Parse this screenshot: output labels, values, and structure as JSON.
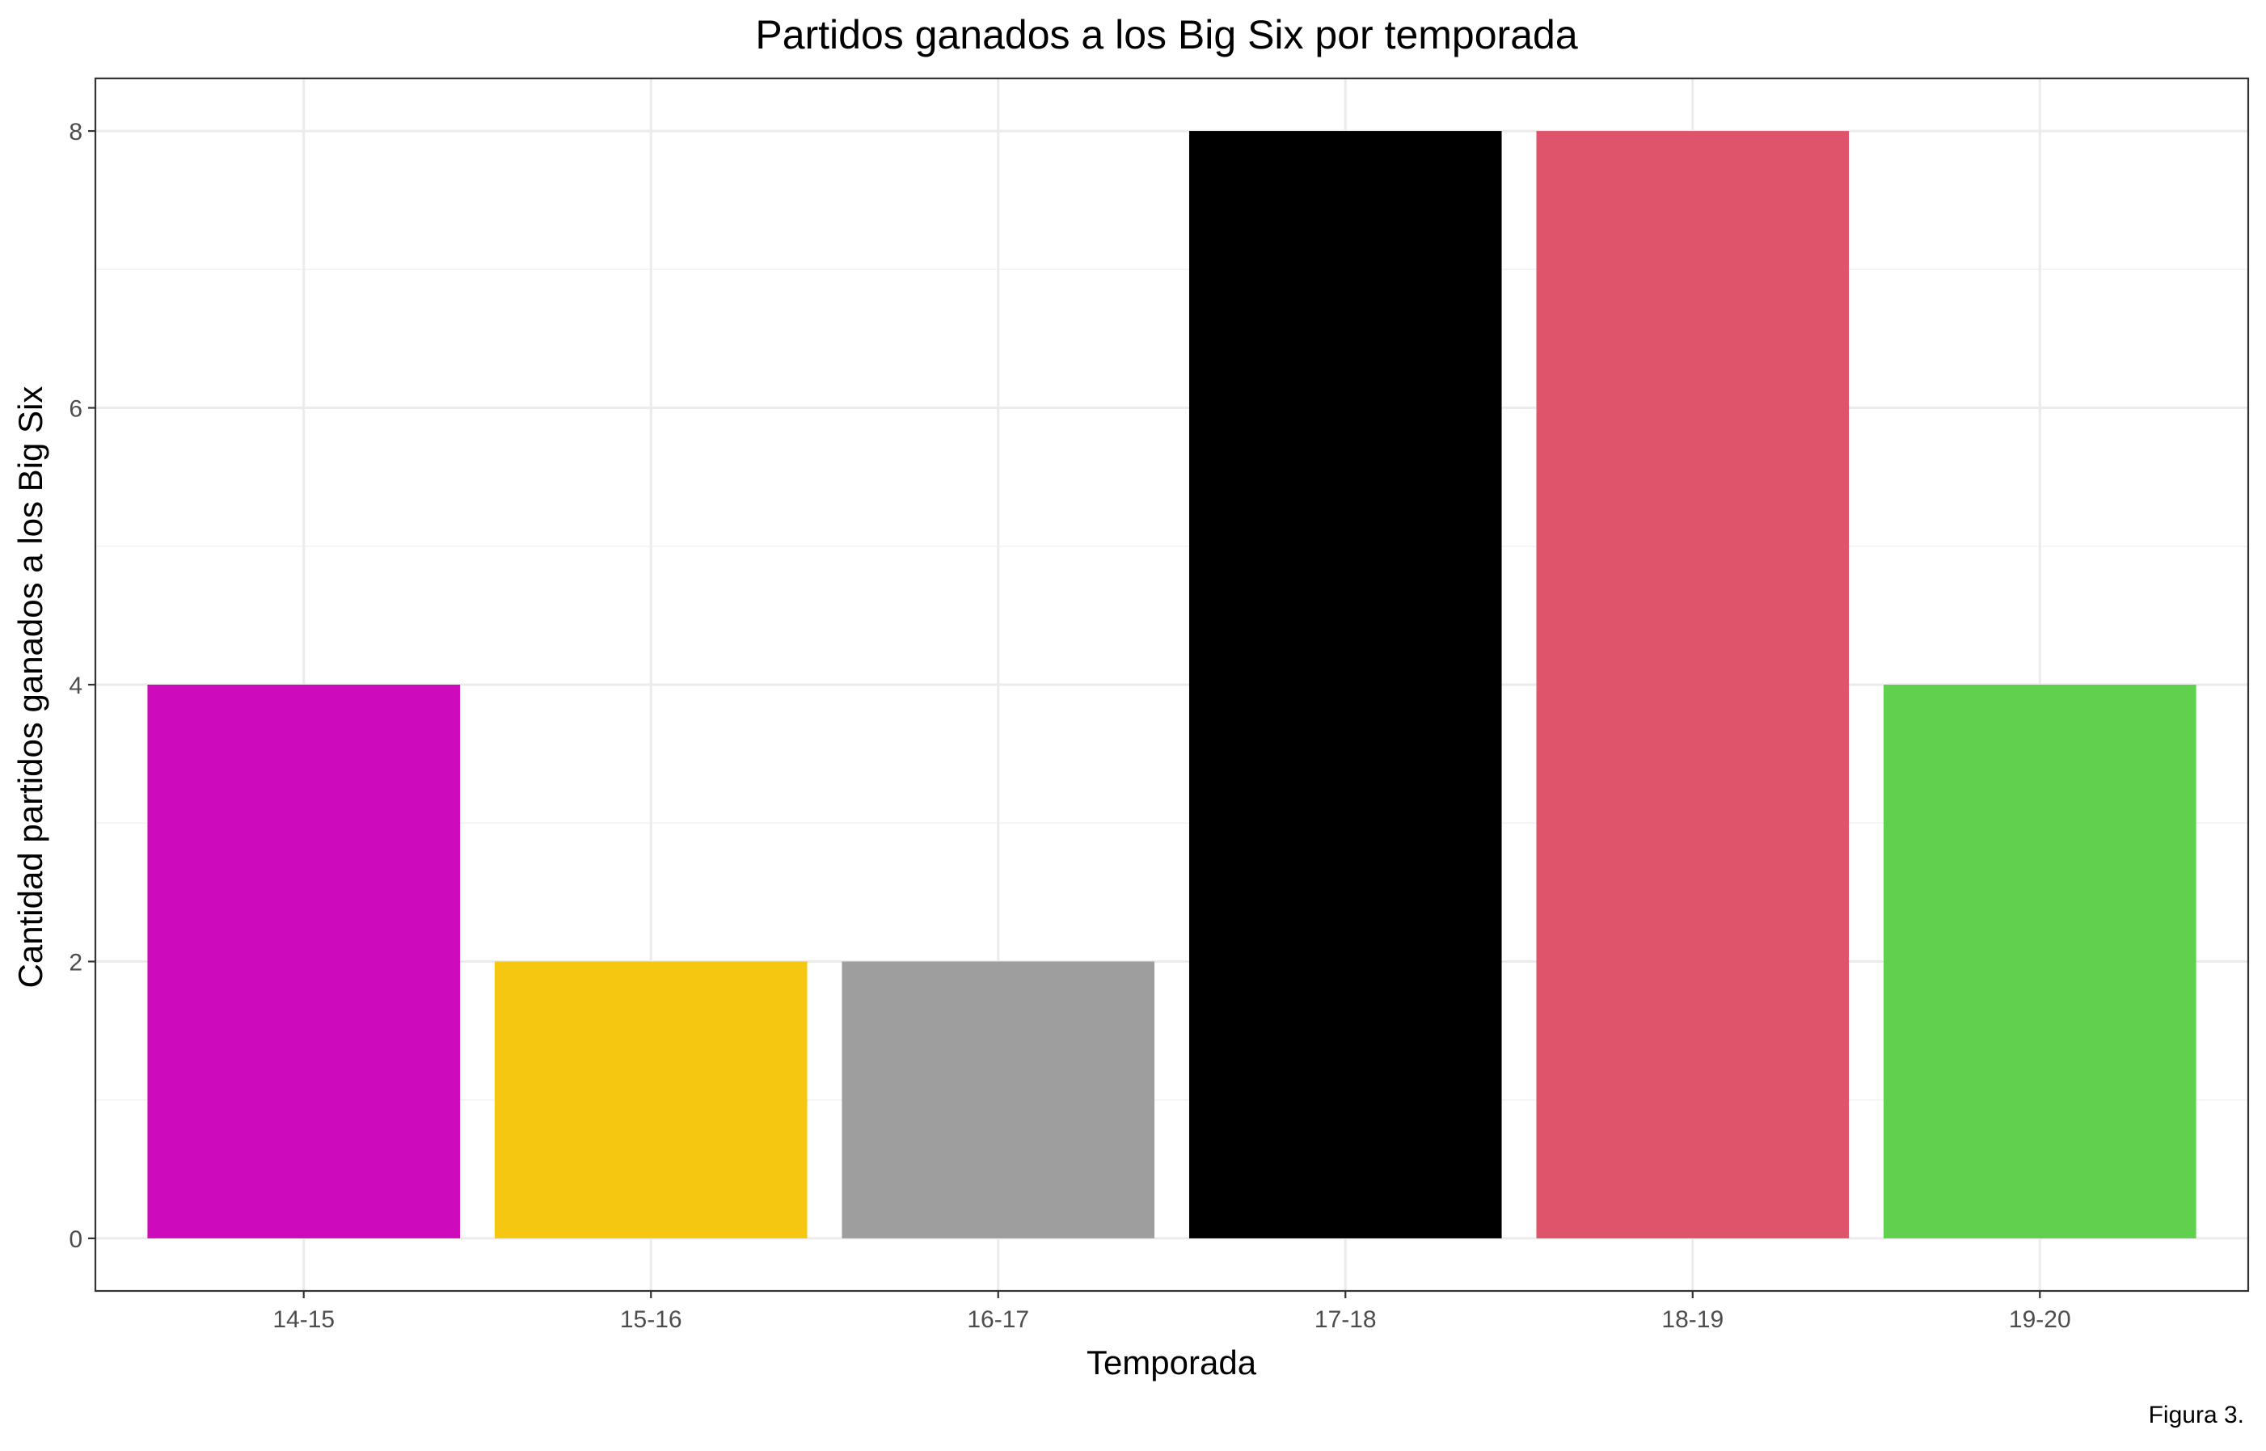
{
  "chart_data": {
    "type": "bar",
    "title": "Partidos ganados a los Big Six por temporada",
    "xlabel": "Temporada",
    "ylabel": "Cantidad partidos ganados a los Big Six",
    "categories": [
      "14-15",
      "15-16",
      "16-17",
      "17-18",
      "18-19",
      "19-20"
    ],
    "values": [
      4,
      2,
      2,
      8,
      8,
      4
    ],
    "colors": [
      "#CD0BBC",
      "#F5C710",
      "#9E9E9E",
      "#000000",
      "#DF536B",
      "#61D04F"
    ],
    "ylim": [
      -0.38,
      8.38
    ],
    "yticks": [
      "0",
      "2",
      "4",
      "6",
      "8"
    ],
    "grid": true,
    "legend": "none"
  },
  "caption": "Figura 3."
}
